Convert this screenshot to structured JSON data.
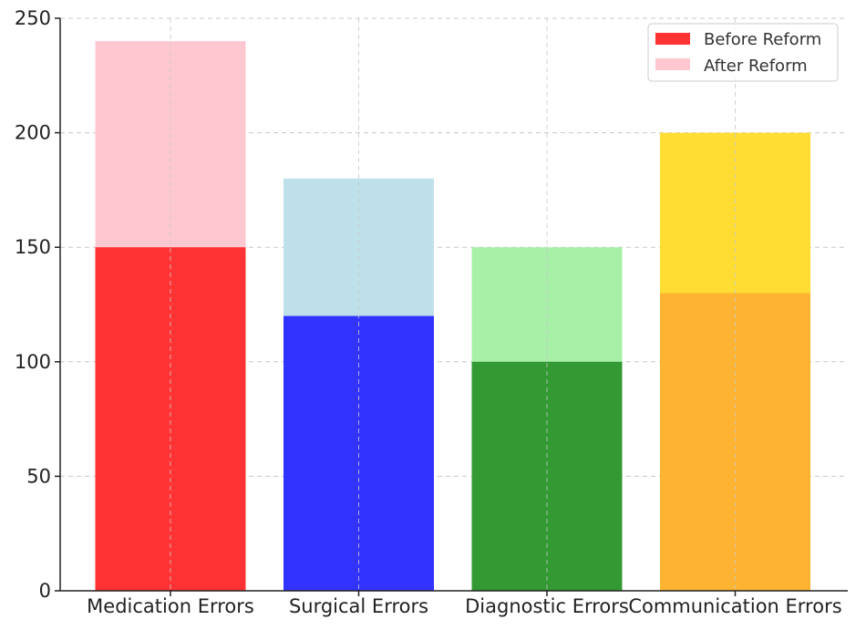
{
  "chart_data": {
    "type": "bar",
    "title": "",
    "xlabel": "",
    "ylabel": "",
    "categories": [
      "Medication Errors",
      "Surgical Errors",
      "Diagnostic Errors",
      "Communication Errors"
    ],
    "series": [
      {
        "name": "Before Reform",
        "values": [
          150,
          120,
          100,
          130
        ],
        "colors": [
          "#ff3333",
          "#3333ff",
          "#339933",
          "#ffb333"
        ]
      },
      {
        "name": "After Reform",
        "values": [
          240,
          180,
          150,
          200
        ],
        "colors": [
          "#ffc8d1",
          "#bde0ea",
          "#a8f0a8",
          "#ffdd33"
        ]
      }
    ],
    "overlay": true,
    "ylim": [
      0,
      250
    ],
    "yticks": [
      0,
      50,
      100,
      150,
      200,
      250
    ],
    "grid": true,
    "legend": {
      "placement": "top-right",
      "swatch_colors": [
        "#ff3333",
        "#ffc8d1"
      ]
    }
  }
}
